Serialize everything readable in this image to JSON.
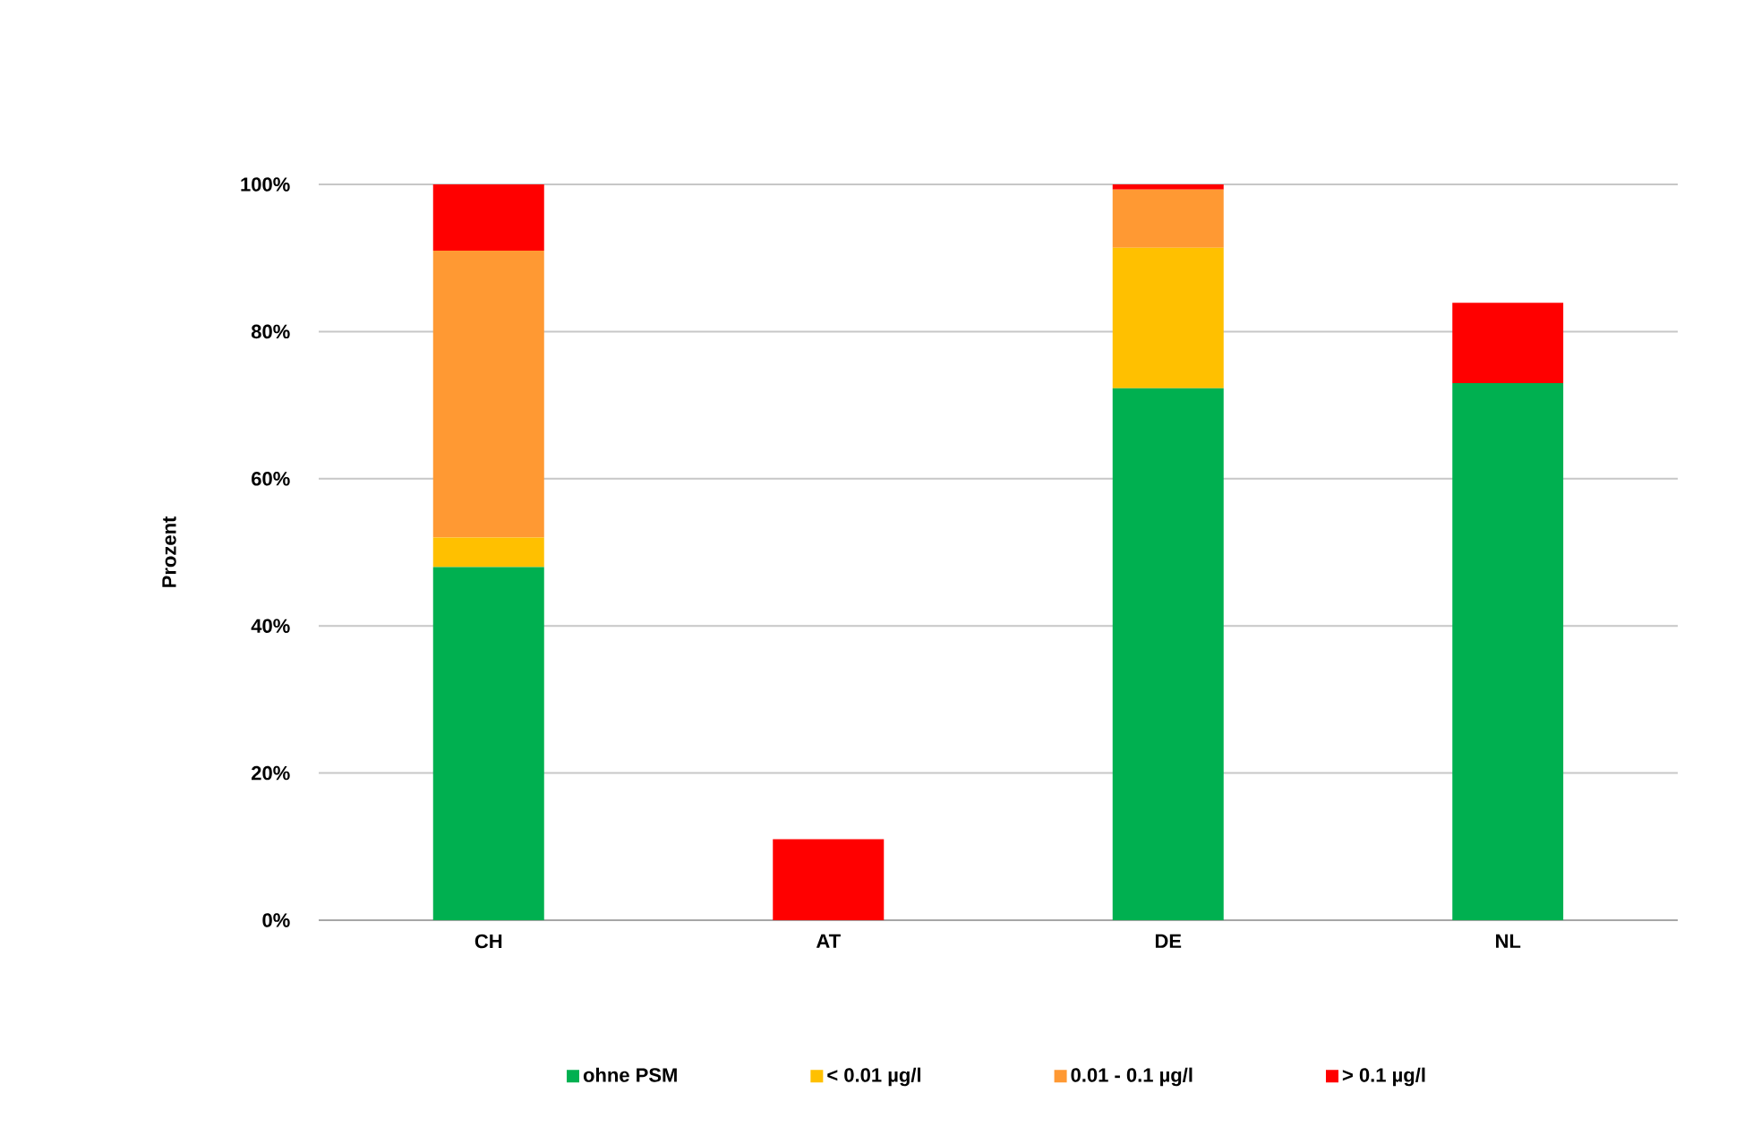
{
  "chart_data": {
    "type": "bar",
    "stacked": true,
    "ylabel": "Prozent",
    "categories": [
      "CH",
      "AT",
      "DE",
      "NL"
    ],
    "series": [
      {
        "name": "ohne PSM",
        "color": "#00b050",
        "values": [
          48,
          null,
          72.3,
          73
        ]
      },
      {
        "name": "< 0.01 µg/l",
        "color": "#ffc000",
        "values": [
          4,
          null,
          19.1,
          null
        ]
      },
      {
        "name": "0.01 - 0.1 µg/l",
        "color": "#ff9933",
        "values": [
          39,
          null,
          7.9,
          null
        ]
      },
      {
        "name": "> 0.1 µg/l",
        "color": "#ff0000",
        "values": [
          9,
          11,
          0.7,
          10.9
        ]
      }
    ],
    "ylim": [
      0,
      100
    ],
    "yticks": [
      {
        "value": 0,
        "label": "0%"
      },
      {
        "value": 20,
        "label": "20%"
      },
      {
        "value": 40,
        "label": "40%"
      },
      {
        "value": 60,
        "label": "60%"
      },
      {
        "value": 80,
        "label": "80%"
      },
      {
        "value": 100,
        "label": "100%"
      }
    ],
    "grid": "y",
    "legend": "bottom"
  }
}
